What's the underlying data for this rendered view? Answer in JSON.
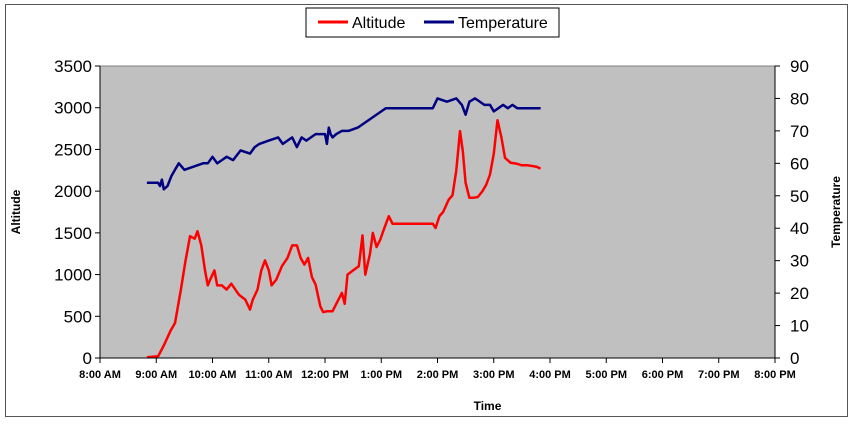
{
  "chart_data": {
    "type": "line",
    "title": "",
    "xlabel": "Time",
    "ylabel_left": "Altitude",
    "ylabel_right": "Temperature",
    "x_ticks": [
      "8:00 AM",
      "9:00 AM",
      "10:00 AM",
      "11:00 AM",
      "12:00 PM",
      "1:00 PM",
      "2:00 PM",
      "3:00 PM",
      "4:00 PM",
      "5:00 PM",
      "6:00 PM",
      "7:00 PM",
      "8:00 PM"
    ],
    "xlim": [
      "8:00 AM",
      "8:00 PM"
    ],
    "ylim_left": [
      0,
      3500
    ],
    "yticks_left": [
      0,
      500,
      1000,
      1500,
      2000,
      2500,
      3000,
      3500
    ],
    "ylim_right": [
      0,
      90
    ],
    "yticks_right": [
      0,
      10,
      20,
      30,
      40,
      50,
      60,
      70,
      80,
      90
    ],
    "legend": {
      "position": "top-center",
      "entries": [
        "Altitude",
        "Temperature"
      ]
    },
    "colors": {
      "Altitude": "#ff0000",
      "Temperature": "#000080",
      "plot_bg": "#c0c0c0"
    },
    "series": [
      {
        "name": "Altitude",
        "axis": "left",
        "points": [
          [
            "8:50 AM",
            10
          ],
          [
            "9:02 AM",
            20
          ],
          [
            "9:08 AM",
            150
          ],
          [
            "9:15 AM",
            320
          ],
          [
            "9:20 AM",
            420
          ],
          [
            "9:26 AM",
            800
          ],
          [
            "9:31 AM",
            1150
          ],
          [
            "9:36 AM",
            1460
          ],
          [
            "9:41 AM",
            1430
          ],
          [
            "9:44 AM",
            1520
          ],
          [
            "9:48 AM",
            1350
          ],
          [
            "9:52 AM",
            1050
          ],
          [
            "9:55 AM",
            870
          ],
          [
            "9:58 AM",
            950
          ],
          [
            "10:02 AM",
            1050
          ],
          [
            "10:05 AM",
            870
          ],
          [
            "10:10 AM",
            870
          ],
          [
            "10:15 AM",
            820
          ],
          [
            "10:20 AM",
            890
          ],
          [
            "10:28 AM",
            760
          ],
          [
            "10:35 AM",
            700
          ],
          [
            "10:40 AM",
            580
          ],
          [
            "10:43 AM",
            700
          ],
          [
            "10:48 AM",
            820
          ],
          [
            "10:52 AM",
            1050
          ],
          [
            "10:56 AM",
            1170
          ],
          [
            "11:00 AM",
            1050
          ],
          [
            "11:03 AM",
            870
          ],
          [
            "11:08 AM",
            940
          ],
          [
            "11:14 AM",
            1100
          ],
          [
            "11:20 AM",
            1200
          ],
          [
            "11:25 AM",
            1350
          ],
          [
            "11:30 AM",
            1350
          ],
          [
            "11:34 AM",
            1200
          ],
          [
            "11:38 AM",
            1120
          ],
          [
            "11:42 AM",
            1200
          ],
          [
            "11:46 AM",
            970
          ],
          [
            "11:50 AM",
            880
          ],
          [
            "11:55 AM",
            620
          ],
          [
            "11:58 AM",
            550
          ],
          [
            "12:02 PM",
            560
          ],
          [
            "12:08 PM",
            560
          ],
          [
            "12:12 PM",
            650
          ],
          [
            "12:18 PM",
            780
          ],
          [
            "12:21 PM",
            650
          ],
          [
            "12:24 PM",
            1000
          ],
          [
            "12:30 PM",
            1050
          ],
          [
            "12:36 PM",
            1100
          ],
          [
            "12:40 PM",
            1470
          ],
          [
            "12:43 PM",
            1000
          ],
          [
            "12:48 PM",
            1250
          ],
          [
            "12:51 PM",
            1500
          ],
          [
            "12:55 PM",
            1330
          ],
          [
            "12:59 PM",
            1420
          ],
          [
            "1:03 PM",
            1550
          ],
          [
            "1:08 PM",
            1700
          ],
          [
            "1:12 PM",
            1610
          ],
          [
            "1:25 PM",
            1610
          ],
          [
            "1:45 PM",
            1610
          ],
          [
            "1:55 PM",
            1610
          ],
          [
            "1:58 PM",
            1560
          ],
          [
            "2:02 PM",
            1700
          ],
          [
            "2:06 PM",
            1750
          ],
          [
            "2:12 PM",
            1900
          ],
          [
            "2:16 PM",
            1950
          ],
          [
            "2:20 PM",
            2250
          ],
          [
            "2:24 PM",
            2720
          ],
          [
            "2:27 PM",
            2480
          ],
          [
            "2:30 PM",
            2100
          ],
          [
            "2:34 PM",
            1920
          ],
          [
            "2:38 PM",
            1920
          ],
          [
            "2:43 PM",
            1930
          ],
          [
            "2:48 PM",
            2000
          ],
          [
            "2:52 PM",
            2080
          ],
          [
            "2:56 PM",
            2200
          ],
          [
            "3:00 PM",
            2450
          ],
          [
            "3:04 PM",
            2850
          ],
          [
            "3:08 PM",
            2650
          ],
          [
            "3:12 PM",
            2400
          ],
          [
            "3:18 PM",
            2340
          ],
          [
            "3:24 PM",
            2330
          ],
          [
            "3:30 PM",
            2310
          ],
          [
            "3:36 PM",
            2310
          ],
          [
            "3:42 PM",
            2300
          ],
          [
            "3:46 PM",
            2290
          ],
          [
            "3:50 PM",
            2270
          ]
        ]
      },
      {
        "name": "Temperature",
        "axis": "right",
        "points": [
          [
            "8:50 AM",
            54
          ],
          [
            "9:02 AM",
            54
          ],
          [
            "9:04 AM",
            53
          ],
          [
            "9:06 AM",
            55
          ],
          [
            "9:08 AM",
            52
          ],
          [
            "9:12 AM",
            53
          ],
          [
            "9:16 AM",
            56
          ],
          [
            "9:20 AM",
            58
          ],
          [
            "9:24 AM",
            60
          ],
          [
            "9:30 AM",
            58
          ],
          [
            "9:40 AM",
            59
          ],
          [
            "9:50 AM",
            60
          ],
          [
            "9:55 AM",
            60
          ],
          [
            "10:00 AM",
            62
          ],
          [
            "10:05 AM",
            60
          ],
          [
            "10:10 AM",
            61
          ],
          [
            "10:15 AM",
            62
          ],
          [
            "10:22 AM",
            61
          ],
          [
            "10:30 AM",
            64
          ],
          [
            "10:40 AM",
            63
          ],
          [
            "10:45 AM",
            65
          ],
          [
            "10:50 AM",
            66
          ],
          [
            "11:00 AM",
            67
          ],
          [
            "11:10 AM",
            68
          ],
          [
            "11:15 AM",
            66
          ],
          [
            "11:20 AM",
            67
          ],
          [
            "11:25 AM",
            68
          ],
          [
            "11:30 AM",
            65
          ],
          [
            "11:35 AM",
            68
          ],
          [
            "11:40 AM",
            67
          ],
          [
            "11:50 AM",
            69
          ],
          [
            "12:00 PM",
            69
          ],
          [
            "12:02 PM",
            66
          ],
          [
            "12:04 PM",
            71
          ],
          [
            "12:06 PM",
            69
          ],
          [
            "12:08 PM",
            68
          ],
          [
            "12:12 PM",
            69
          ],
          [
            "12:18 PM",
            70
          ],
          [
            "12:25 PM",
            70
          ],
          [
            "12:35 PM",
            71
          ],
          [
            "12:40 PM",
            72
          ],
          [
            "12:50 PM",
            74
          ],
          [
            "1:00 PM",
            76
          ],
          [
            "1:05 PM",
            77
          ],
          [
            "1:15 PM",
            77
          ],
          [
            "1:30 PM",
            77
          ],
          [
            "1:45 PM",
            77
          ],
          [
            "1:55 PM",
            77
          ],
          [
            "2:00 PM",
            80
          ],
          [
            "2:10 PM",
            79
          ],
          [
            "2:20 PM",
            80
          ],
          [
            "2:26 PM",
            78
          ],
          [
            "2:30 PM",
            75
          ],
          [
            "2:34 PM",
            79
          ],
          [
            "2:40 PM",
            80
          ],
          [
            "2:50 PM",
            78
          ],
          [
            "2:56 PM",
            78
          ],
          [
            "3:00 PM",
            76
          ],
          [
            "3:05 PM",
            77
          ],
          [
            "3:10 PM",
            78
          ],
          [
            "3:15 PM",
            77
          ],
          [
            "3:20 PM",
            78
          ],
          [
            "3:25 PM",
            77
          ],
          [
            "3:30 PM",
            77
          ],
          [
            "3:40 PM",
            77
          ],
          [
            "3:50 PM",
            77
          ]
        ]
      }
    ]
  }
}
